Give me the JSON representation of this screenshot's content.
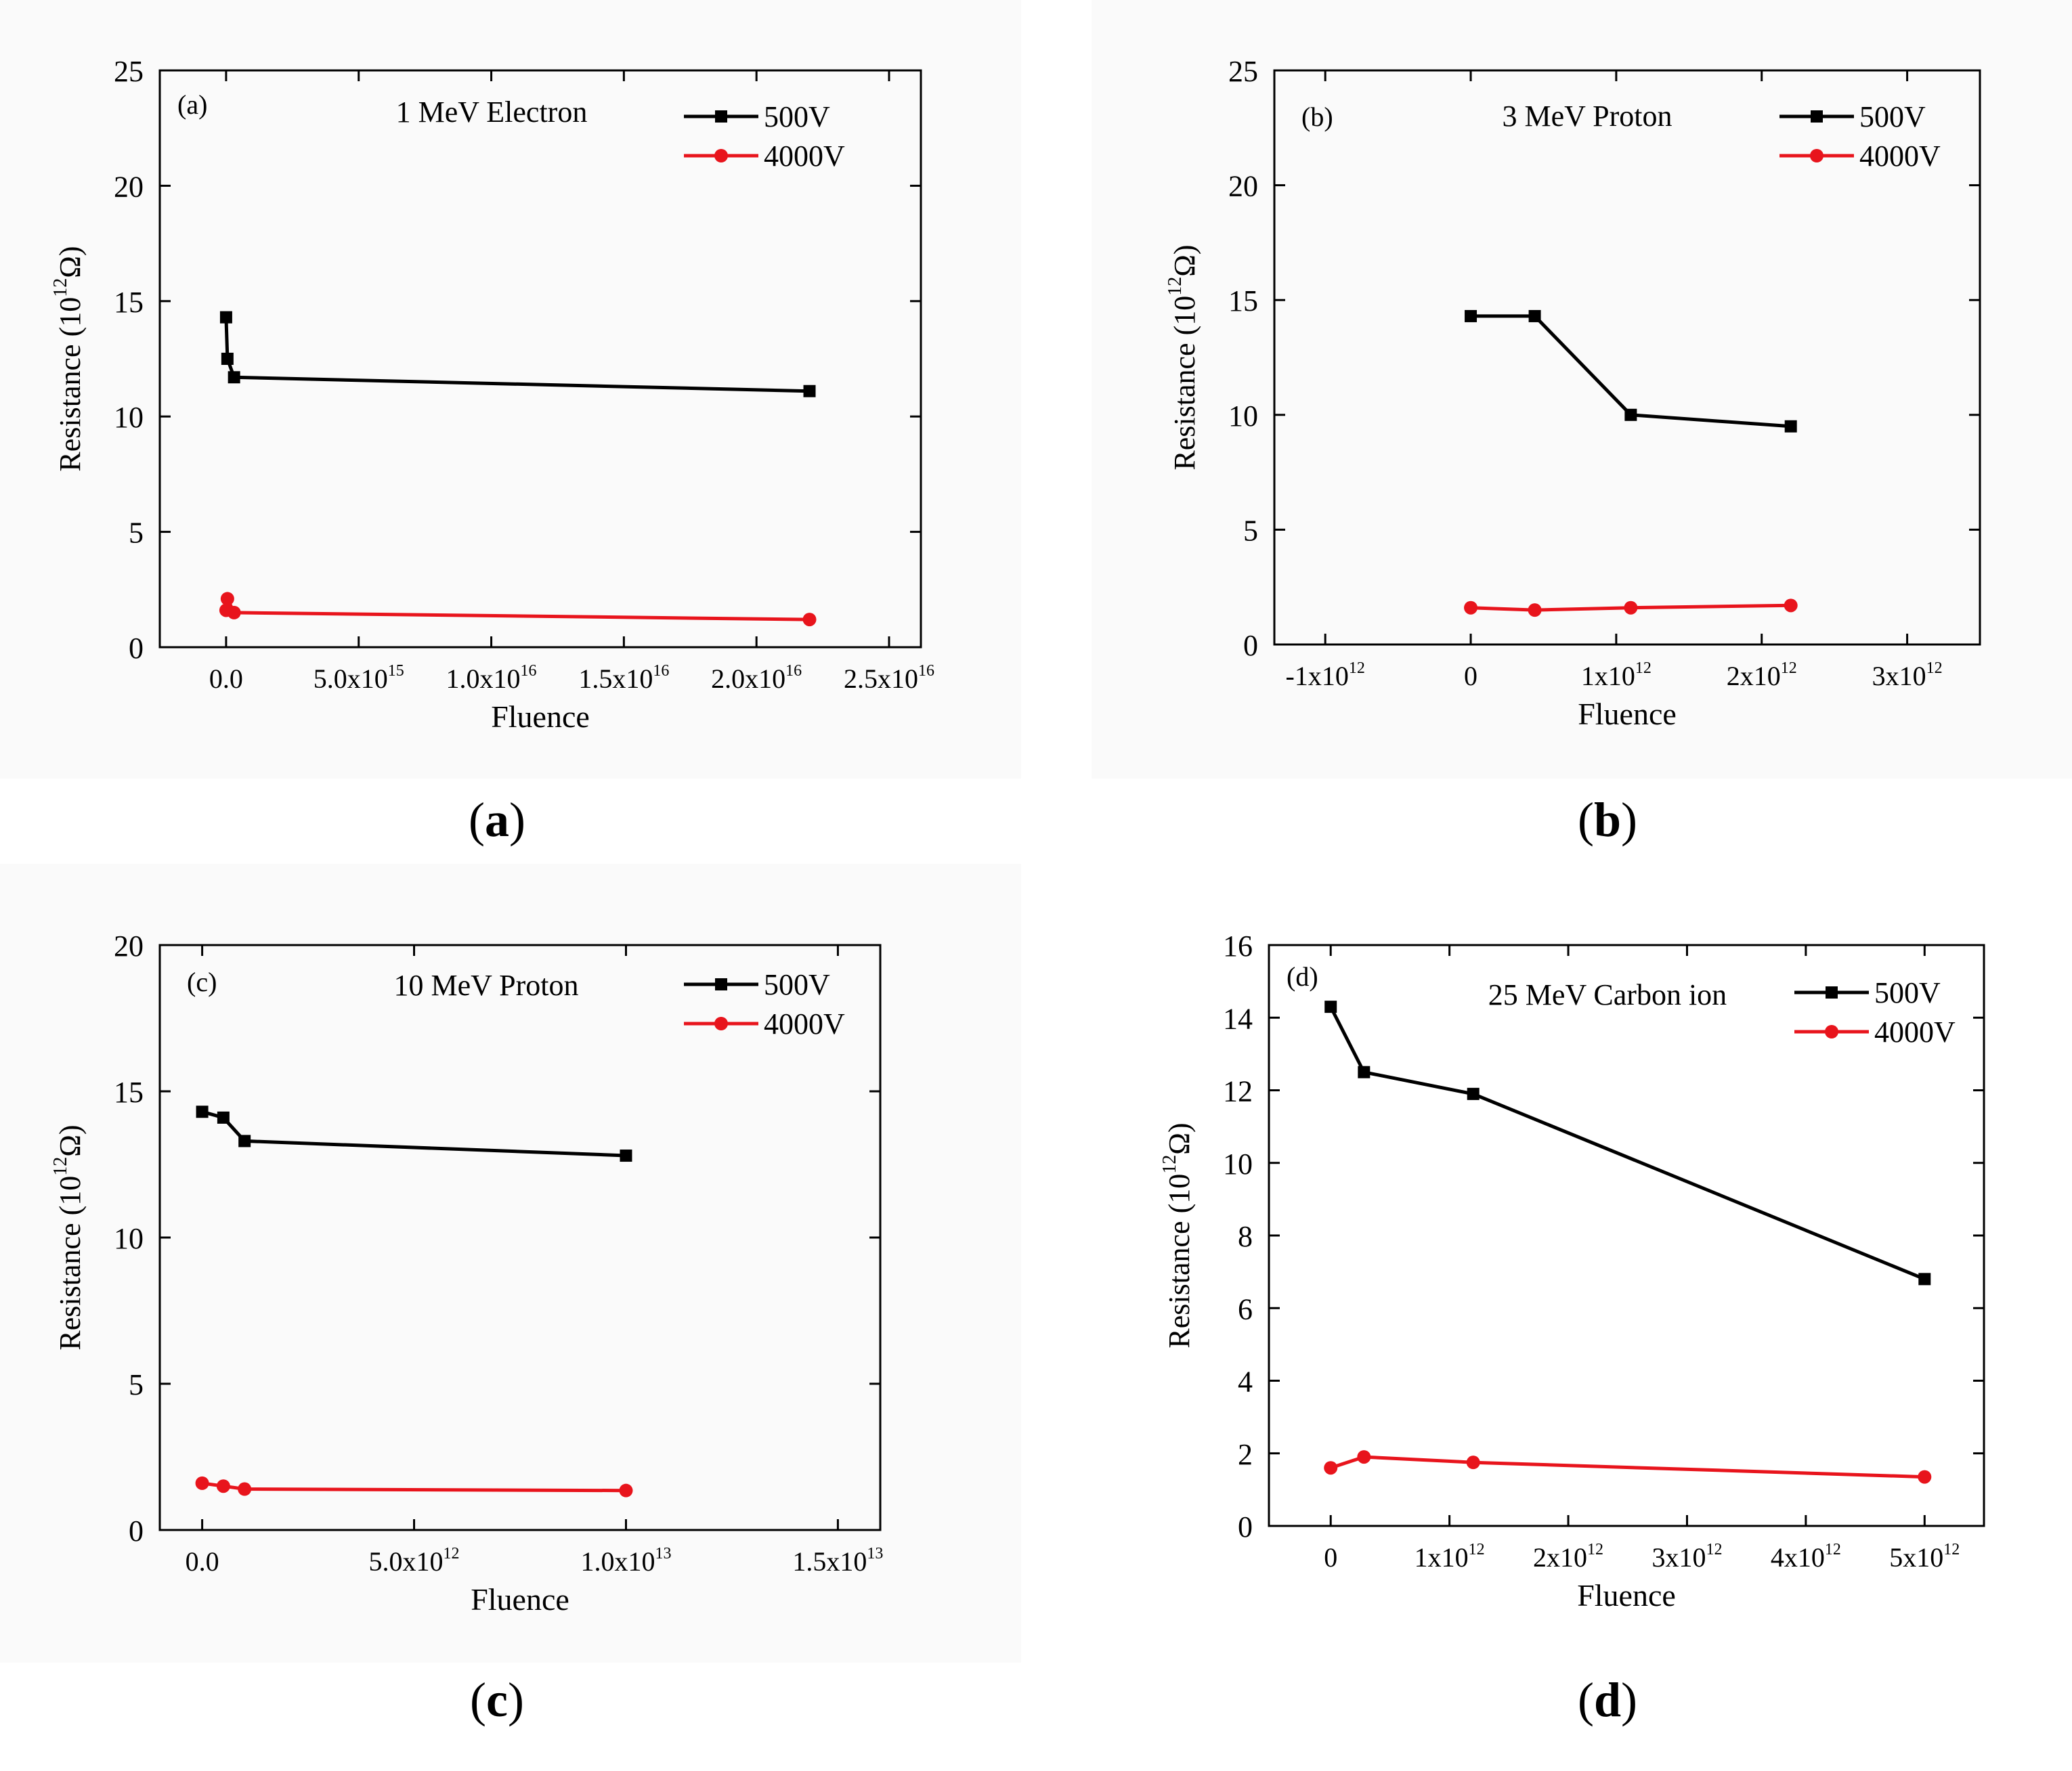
{
  "figure": {
    "captions": [
      {
        "open": "(",
        "letter": "a",
        "close": ")"
      },
      {
        "open": "(",
        "letter": "b",
        "close": ")"
      },
      {
        "open": "(",
        "letter": "c",
        "close": ")"
      },
      {
        "open": "(",
        "letter": "d",
        "close": ")"
      }
    ]
  },
  "colors": {
    "series_500V": "#000000",
    "series_4000V": "#e8141c"
  },
  "chart_data": [
    {
      "type": "line",
      "panel_label": "(a)",
      "title": "1 MeV Electron",
      "xlabel": "Fluence",
      "ylabel_prefix": "Resistance (10",
      "ylabel_exp": "12",
      "ylabel_suffix": "Ω)",
      "xlim": [
        -2500000000000000.0,
        2.62e+16
      ],
      "ylim": [
        0,
        25
      ],
      "xticks": [
        {
          "value": 0,
          "base": "0.0",
          "exp": ""
        },
        {
          "value": 5000000000000000.0,
          "base": "5.0x10",
          "exp": "15"
        },
        {
          "value": 1e+16,
          "base": "1.0x10",
          "exp": "16"
        },
        {
          "value": 1.5e+16,
          "base": "1.5x10",
          "exp": "16"
        },
        {
          "value": 2e+16,
          "base": "2.0x10",
          "exp": "16"
        },
        {
          "value": 2.5e+16,
          "base": "2.5x10",
          "exp": "16"
        }
      ],
      "yticks": [
        0,
        5,
        10,
        15,
        20,
        25
      ],
      "legend_position": "top-right",
      "series": [
        {
          "name": "500V",
          "marker": "square",
          "x": [
            0,
            50000000000000.0,
            300000000000000.0,
            2.2e+16
          ],
          "y": [
            14.3,
            12.5,
            11.7,
            11.1
          ]
        },
        {
          "name": "4000V",
          "marker": "circle",
          "x": [
            0,
            50000000000000.0,
            300000000000000.0,
            2.2e+16
          ],
          "y": [
            1.6,
            2.1,
            1.5,
            1.2
          ]
        }
      ]
    },
    {
      "type": "line",
      "panel_label": "(b)",
      "title": "3 MeV Proton",
      "xlabel": "Fluence",
      "ylabel_prefix": "Resistance (10",
      "ylabel_exp": "12",
      "ylabel_suffix": "Ω)",
      "xlim": [
        -1350000000000.0,
        3500000000000.0
      ],
      "ylim": [
        0,
        25
      ],
      "xticks": [
        {
          "value": -1000000000000.0,
          "base": "-1x10",
          "exp": "12"
        },
        {
          "value": 0,
          "base": "0",
          "exp": ""
        },
        {
          "value": 1000000000000.0,
          "base": "1x10",
          "exp": "12"
        },
        {
          "value": 2000000000000.0,
          "base": "2x10",
          "exp": "12"
        },
        {
          "value": 3000000000000.0,
          "base": "3x10",
          "exp": "12"
        }
      ],
      "yticks": [
        0,
        5,
        10,
        15,
        20,
        25
      ],
      "legend_position": "top-right",
      "series": [
        {
          "name": "500V",
          "marker": "square",
          "x": [
            0,
            440000000000.0,
            1100000000000.0,
            2200000000000.0
          ],
          "y": [
            14.3,
            14.3,
            10.0,
            9.5
          ]
        },
        {
          "name": "4000V",
          "marker": "circle",
          "x": [
            0,
            440000000000.0,
            1100000000000.0,
            2200000000000.0
          ],
          "y": [
            1.6,
            1.5,
            1.6,
            1.7
          ]
        }
      ]
    },
    {
      "type": "line",
      "panel_label": "(c)",
      "title": "10 MeV Proton",
      "xlabel": "Fluence",
      "ylabel_prefix": "Resistance (10",
      "ylabel_exp": "12",
      "ylabel_suffix": "Ω)",
      "xlim": [
        -1000000000000.0,
        16000000000000.0
      ],
      "ylim": [
        0,
        20
      ],
      "xticks": [
        {
          "value": 0,
          "base": "0.0",
          "exp": ""
        },
        {
          "value": 5000000000000.0,
          "base": "5.0x10",
          "exp": "12"
        },
        {
          "value": 10000000000000.0,
          "base": "1.0x10",
          "exp": "13"
        },
        {
          "value": 15000000000000.0,
          "base": "1.5x10",
          "exp": "13"
        }
      ],
      "yticks": [
        0,
        5,
        10,
        15,
        20
      ],
      "legend_position": "top-right",
      "series": [
        {
          "name": "500V",
          "marker": "square",
          "x": [
            0,
            500000000000.0,
            1000000000000.0,
            10000000000000.0
          ],
          "y": [
            14.3,
            14.1,
            13.3,
            12.8
          ]
        },
        {
          "name": "4000V",
          "marker": "circle",
          "x": [
            0,
            500000000000.0,
            1000000000000.0,
            10000000000000.0
          ],
          "y": [
            1.6,
            1.5,
            1.4,
            1.35
          ]
        }
      ]
    },
    {
      "type": "line",
      "panel_label": "(d)",
      "title": "25 MeV Carbon ion",
      "xlabel": "Fluence",
      "ylabel_prefix": "Resistance (10",
      "ylabel_exp": "12",
      "ylabel_suffix": "Ω)",
      "xlim": [
        -520000000000.0,
        5500000000000.0
      ],
      "ylim": [
        0,
        16
      ],
      "xticks": [
        {
          "value": 0,
          "base": "0",
          "exp": ""
        },
        {
          "value": 1000000000000.0,
          "base": "1x10",
          "exp": "12"
        },
        {
          "value": 2000000000000.0,
          "base": "2x10",
          "exp": "12"
        },
        {
          "value": 3000000000000.0,
          "base": "3x10",
          "exp": "12"
        },
        {
          "value": 4000000000000.0,
          "base": "4x10",
          "exp": "12"
        },
        {
          "value": 5000000000000.0,
          "base": "5x10",
          "exp": "12"
        }
      ],
      "yticks": [
        0,
        2,
        4,
        6,
        8,
        10,
        12,
        14,
        16
      ],
      "legend_position": "top-right",
      "series": [
        {
          "name": "500V",
          "marker": "square",
          "x": [
            0,
            280000000000.0,
            1200000000000.0,
            5000000000000.0
          ],
          "y": [
            14.3,
            12.5,
            11.9,
            6.8
          ]
        },
        {
          "name": "4000V",
          "marker": "circle",
          "x": [
            0,
            280000000000.0,
            1200000000000.0,
            5000000000000.0
          ],
          "y": [
            1.6,
            1.9,
            1.75,
            1.35
          ]
        }
      ]
    }
  ]
}
